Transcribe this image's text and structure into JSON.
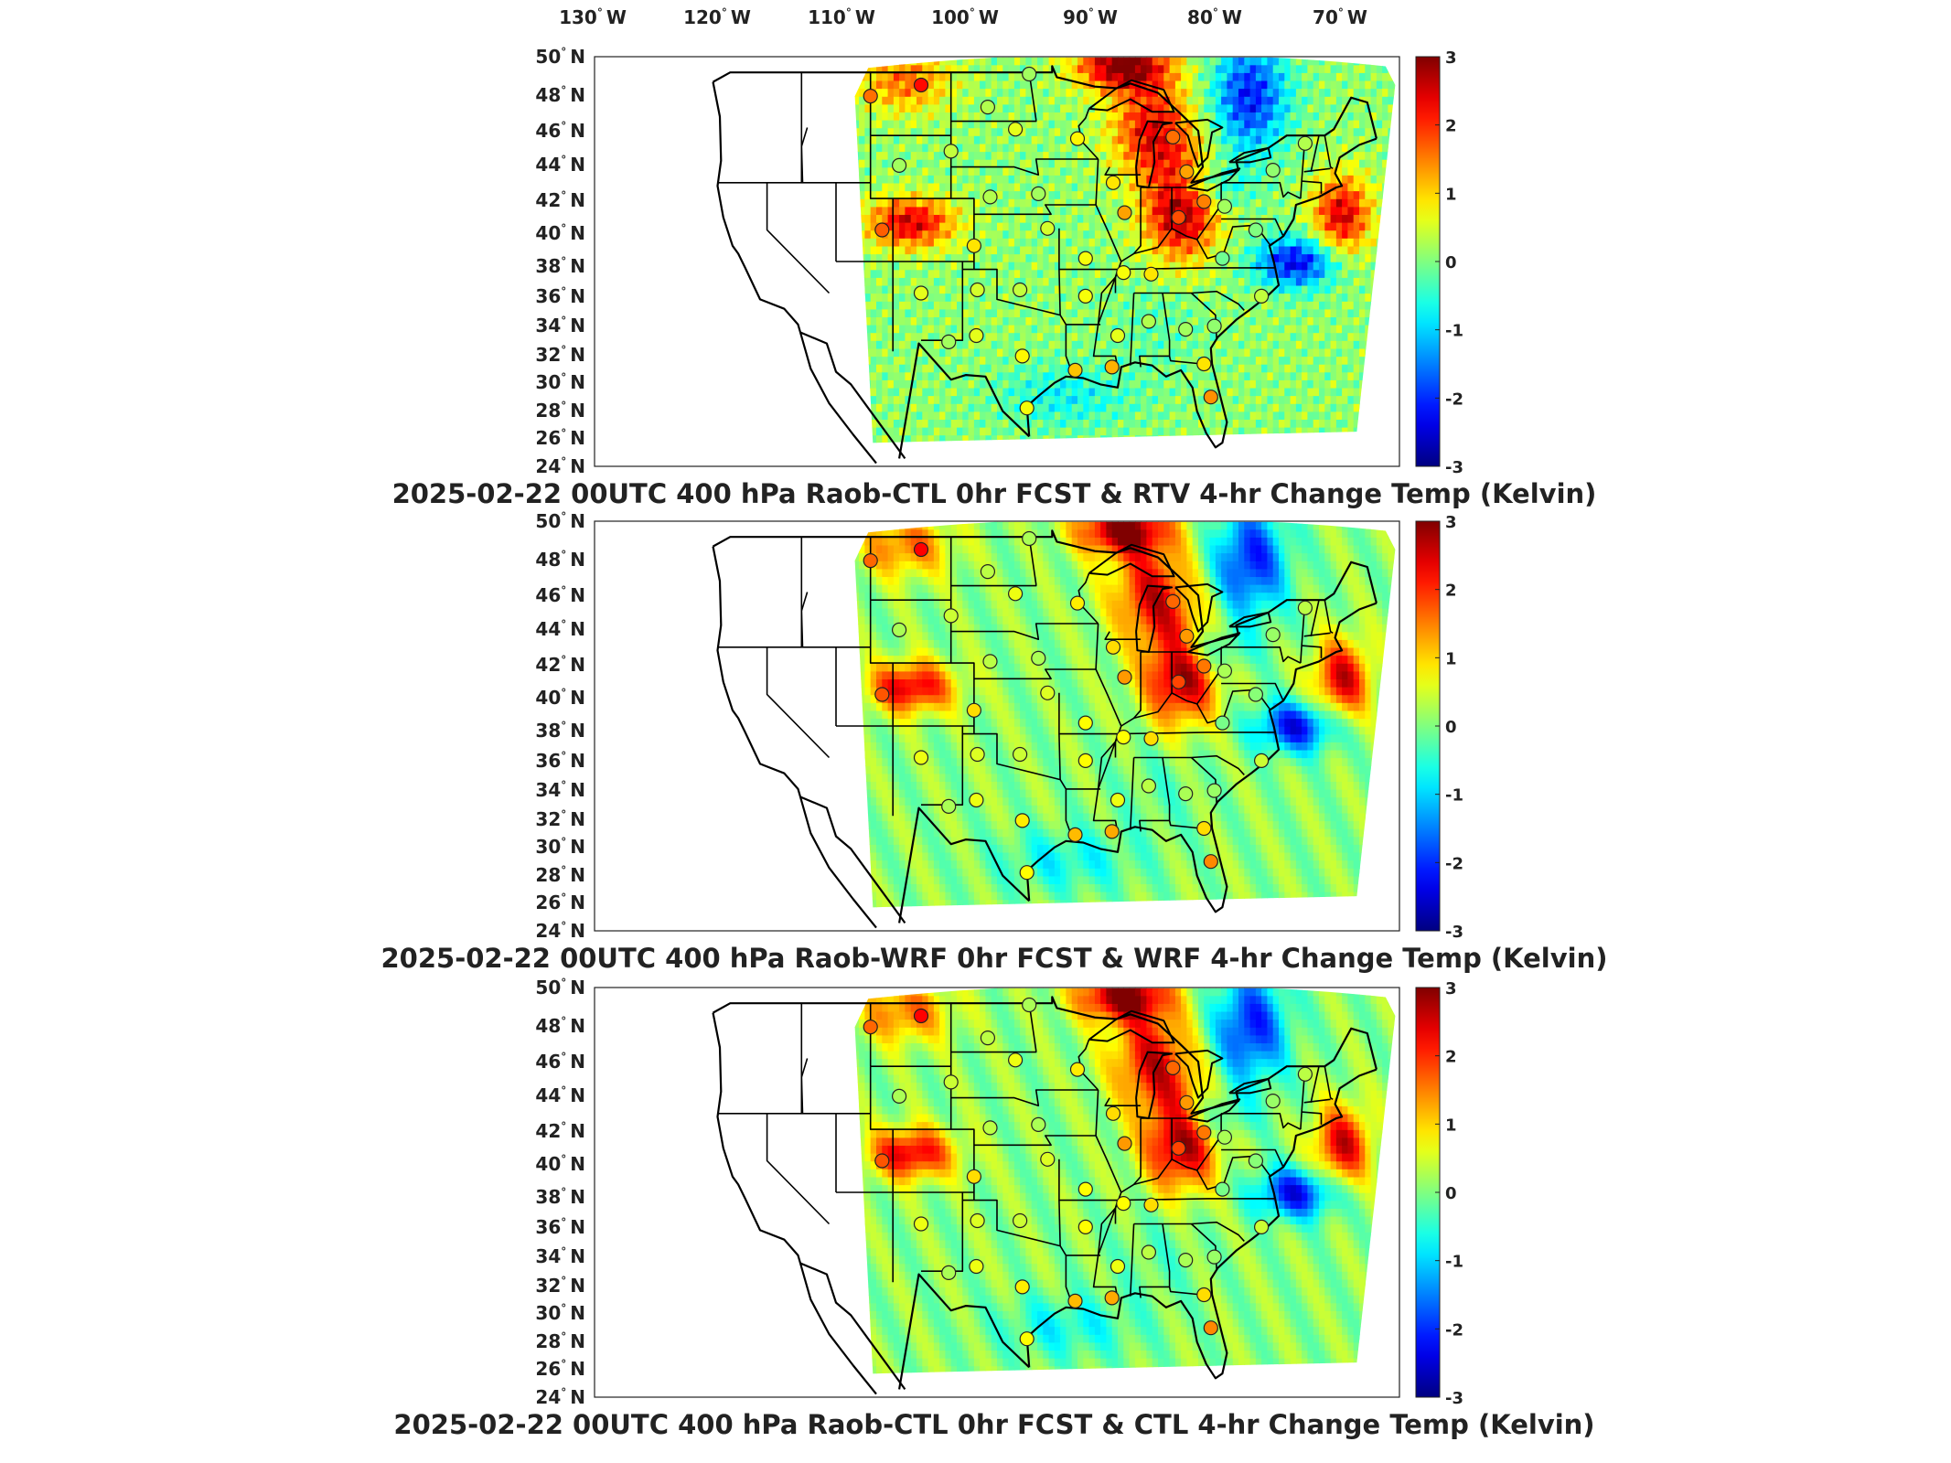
{
  "figure": {
    "lon_labels": [
      "130",
      "120",
      "110",
      "100",
      "90",
      "80",
      "70"
    ],
    "lon_suffix": "W",
    "lat_labels": [
      "50",
      "48",
      "46",
      "44",
      "42",
      "40",
      "38",
      "36",
      "34",
      "32",
      "30",
      "28",
      "26",
      "24"
    ],
    "lat_suffix": "N",
    "degree_symbol": "°",
    "lon_range": [
      -135,
      -65
    ],
    "lat_range": [
      24,
      50
    ],
    "colorbar": {
      "ticks": [
        "3",
        "2",
        "1",
        "0",
        "-1",
        "-2",
        "-3"
      ],
      "range": [
        -3,
        3
      ],
      "colormap": "jet",
      "colors": [
        "#00008f",
        "#0000ff",
        "#00ffff",
        "#7fff7f",
        "#ffff00",
        "#ff0000",
        "#800000"
      ]
    }
  },
  "panels": [
    {
      "title": "2025-02-22 00UTC 400 hPa Raob-CTL 0hr FCST & RTV 4-hr Change Temp (Kelvin)"
    },
    {
      "title": "2025-02-22 00UTC 400 hPa Raob-WRF 0hr FCST & WRF 4-hr Change Temp (Kelvin)"
    },
    {
      "title": "2025-02-22 00UTC 400 hPa Raob-CTL 0hr FCST & CTL 4-hr Change Temp (Kelvin)"
    }
  ],
  "stations": [
    {
      "lon": -111.0,
      "lat": 47.5,
      "v": 1.6
    },
    {
      "lon": -106.6,
      "lat": 48.2,
      "v": 2.2
    },
    {
      "lon": -100.8,
      "lat": 46.8,
      "v": 0.3
    },
    {
      "lon": -97.2,
      "lat": 48.9,
      "v": 0.2
    },
    {
      "lon": -98.4,
      "lat": 45.4,
      "v": 0.6
    },
    {
      "lon": -104.0,
      "lat": 44.0,
      "v": 0.4
    },
    {
      "lon": -108.5,
      "lat": 43.1,
      "v": 0.2
    },
    {
      "lon": -100.6,
      "lat": 41.1,
      "v": 0.3
    },
    {
      "lon": -96.4,
      "lat": 41.3,
      "v": 0.2
    },
    {
      "lon": -93.0,
      "lat": 44.8,
      "v": 0.8
    },
    {
      "lon": -89.9,
      "lat": 42.0,
      "v": 0.9
    },
    {
      "lon": -88.9,
      "lat": 40.1,
      "v": 1.3
    },
    {
      "lon": -84.7,
      "lat": 44.9,
      "v": 1.6
    },
    {
      "lon": -83.5,
      "lat": 42.7,
      "v": 1.3
    },
    {
      "lon": -82.0,
      "lat": 40.8,
      "v": 1.5
    },
    {
      "lon": -80.2,
      "lat": 40.5,
      "v": 0.2
    },
    {
      "lon": -76.0,
      "lat": 42.8,
      "v": 0.1
    },
    {
      "lon": -73.2,
      "lat": 44.5,
      "v": 0.3
    },
    {
      "lon": -77.5,
      "lat": 39.0,
      "v": 0.0
    },
    {
      "lon": -80.4,
      "lat": 37.2,
      "v": -0.1
    },
    {
      "lon": -77.0,
      "lat": 34.8,
      "v": 0.4
    },
    {
      "lon": -81.1,
      "lat": 32.9,
      "v": 0.1
    },
    {
      "lon": -83.6,
      "lat": 32.7,
      "v": 0.2
    },
    {
      "lon": -86.8,
      "lat": 33.2,
      "v": 0.3
    },
    {
      "lon": -89.5,
      "lat": 32.3,
      "v": 0.6
    },
    {
      "lon": -90.0,
      "lat": 30.3,
      "v": 1.2
    },
    {
      "lon": -93.2,
      "lat": 30.1,
      "v": 1.1
    },
    {
      "lon": -97.4,
      "lat": 27.7,
      "v": 0.7
    },
    {
      "lon": -97.8,
      "lat": 31.0,
      "v": 0.8
    },
    {
      "lon": -101.8,
      "lat": 32.3,
      "v": 0.6
    },
    {
      "lon": -104.2,
      "lat": 31.9,
      "v": 0.2
    },
    {
      "lon": -98.0,
      "lat": 35.2,
      "v": 0.4
    },
    {
      "lon": -101.7,
      "lat": 35.2,
      "v": 0.5
    },
    {
      "lon": -106.6,
      "lat": 35.0,
      "v": 0.6
    },
    {
      "lon": -110.0,
      "lat": 39.0,
      "v": 1.7
    },
    {
      "lon": -102.0,
      "lat": 38.0,
      "v": 0.9
    },
    {
      "lon": -95.6,
      "lat": 39.1,
      "v": 0.5
    },
    {
      "lon": -92.3,
      "lat": 37.2,
      "v": 0.7
    },
    {
      "lon": -89.0,
      "lat": 36.3,
      "v": 0.7
    },
    {
      "lon": -86.6,
      "lat": 36.2,
      "v": 0.9
    },
    {
      "lon": -92.3,
      "lat": 34.8,
      "v": 0.7
    },
    {
      "lon": -84.2,
      "lat": 39.8,
      "v": 1.8
    },
    {
      "lon": -81.4,
      "lat": 28.4,
      "v": 1.4
    },
    {
      "lon": -82.0,
      "lat": 30.5,
      "v": 0.9
    }
  ]
}
